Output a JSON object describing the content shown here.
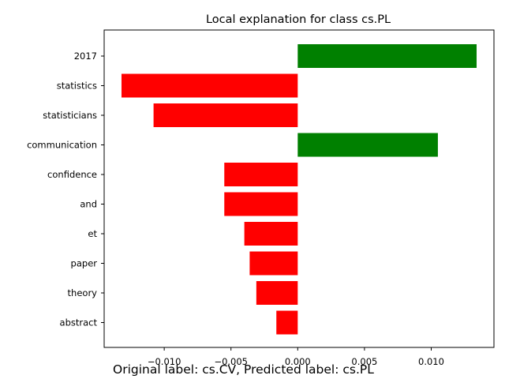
{
  "chart_data": {
    "type": "bar",
    "orientation": "horizontal",
    "title": "Local explanation for class cs.PL",
    "xlabel": "",
    "ylabel": "",
    "categories": [
      "2017",
      "statistics",
      "statisticians",
      "communication",
      "confidence",
      "and",
      "et",
      "paper",
      "theory",
      "abstract"
    ],
    "values": [
      0.0134,
      -0.0132,
      -0.0108,
      0.0105,
      -0.0055,
      -0.0055,
      -0.004,
      -0.0036,
      -0.0031,
      -0.0016
    ],
    "xlim": [
      -0.0145,
      0.0147
    ],
    "xticks": [
      -0.01,
      -0.005,
      0.0,
      0.005,
      0.01
    ],
    "xtick_labels": [
      "−0.010",
      "−0.005",
      "0.000",
      "0.005",
      "0.010"
    ],
    "grid": false,
    "colors": {
      "positive": "#008000",
      "negative": "#ff0000"
    }
  },
  "caption": "Original label: cs.CV, Predicted label: cs.PL"
}
